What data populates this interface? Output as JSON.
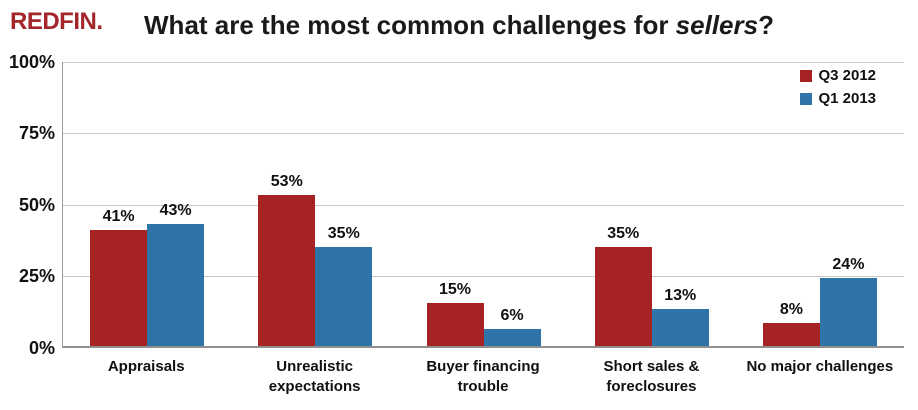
{
  "logo": {
    "text": "REDFIN."
  },
  "title": {
    "prefix": "What are the most common challenges for ",
    "emphasis": "sellers",
    "suffix": "?"
  },
  "colors": {
    "series_q3_2012": "#A62223",
    "series_q1_2013": "#2E74A8",
    "logo_red": "#A3262A",
    "gridline": "#C8C8C8",
    "axis": "#8F8F8F"
  },
  "legend": [
    {
      "label": "Q3 2012",
      "color": "#A62223"
    },
    {
      "label": "Q1 2013",
      "color": "#2E74A8"
    }
  ],
  "y_axis": {
    "ticks": [
      "100%",
      "75%",
      "50%",
      "25%",
      "0%"
    ]
  },
  "category_labels": [
    "Appraisals",
    "Unrealistic\nexpectations",
    "Buyer financing\ntrouble",
    "Short sales &\nforeclosures",
    "No major challenges"
  ],
  "chart_data": {
    "type": "bar",
    "title": "What are the most common challenges for sellers?",
    "categories": [
      "Appraisals",
      "Unrealistic expectations",
      "Buyer financing trouble",
      "Short sales & foreclosures",
      "No major challenges"
    ],
    "series": [
      {
        "name": "Q3 2012",
        "color": "#A62223",
        "values": [
          41,
          53,
          15,
          35,
          8
        ]
      },
      {
        "name": "Q1 2013",
        "color": "#2E74A8",
        "values": [
          43,
          35,
          6,
          13,
          24
        ]
      }
    ],
    "ylabel": "",
    "xlabel": "",
    "ylim": [
      0,
      100
    ],
    "y_ticks_percent": [
      0,
      25,
      50,
      75,
      100
    ],
    "grid": true,
    "legend_position": "top-right",
    "data_labels": "percent"
  }
}
